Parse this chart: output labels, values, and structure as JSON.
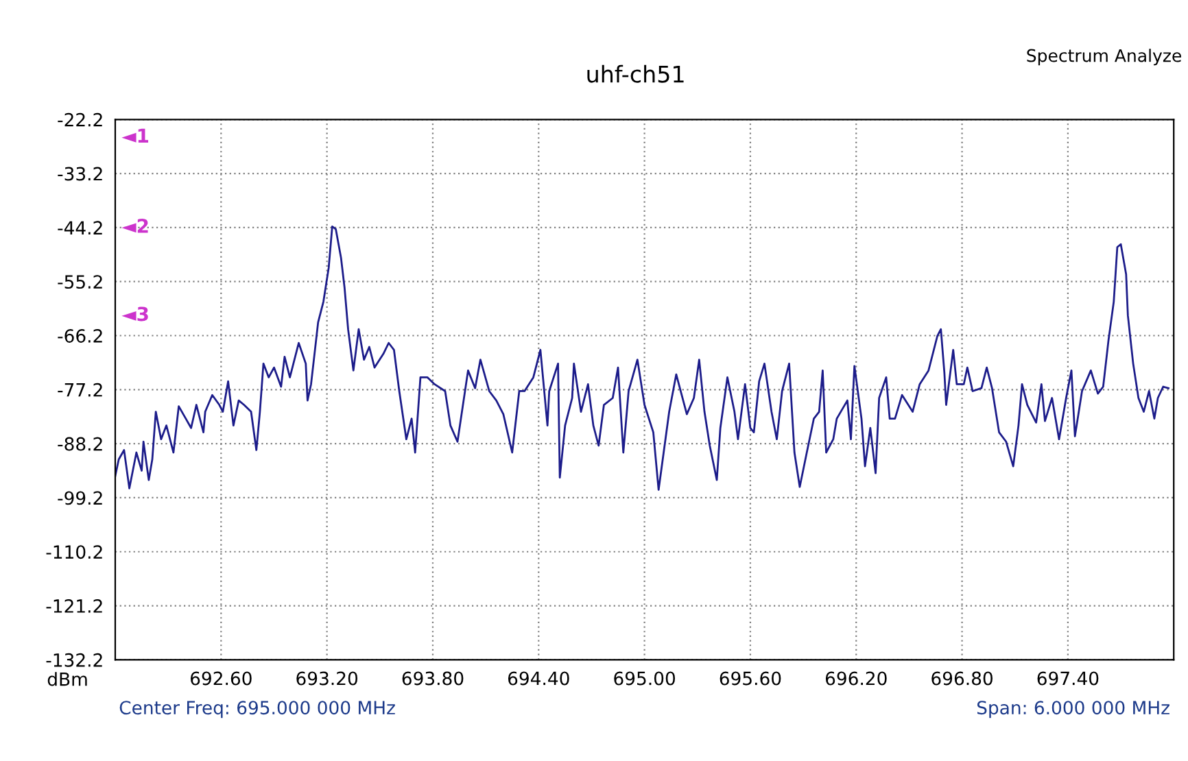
{
  "chart_data": {
    "type": "line",
    "title": "uhf-ch51",
    "ylabel": "dBm",
    "annotations": [
      "Spectrum Analyze",
      "Center Freq: 695.000 000 MHz",
      "Span: 6.000 000 MHz",
      "◄1",
      "◄2",
      "◄3"
    ],
    "series": [
      {
        "color": "#1c1c8a",
        "x": [
          692.0,
          692.02,
          692.05,
          692.08,
          692.12,
          692.15,
          692.16,
          692.19,
          692.21,
          692.23,
          692.26,
          692.29,
          692.33,
          692.36,
          692.4,
          692.43,
          692.46,
          692.5,
          692.51,
          692.55,
          692.59,
          692.61,
          692.64,
          692.67,
          692.7,
          692.73,
          692.77,
          692.8,
          692.82,
          692.84,
          692.87,
          692.9,
          692.94,
          692.96,
          692.99,
          693.04,
          693.08,
          693.09,
          693.11,
          693.15,
          693.18,
          693.21,
          693.23,
          693.25,
          693.28,
          693.3,
          693.32,
          693.35,
          693.38,
          693.41,
          693.44,
          693.47,
          693.52,
          693.55,
          693.58,
          693.61,
          693.65,
          693.68,
          693.7,
          693.73,
          693.77,
          693.81,
          693.87,
          693.9,
          693.94,
          694.0,
          694.04,
          694.07,
          694.12,
          694.16,
          694.2,
          694.25,
          694.29,
          694.32,
          694.37,
          694.41,
          694.45,
          694.46,
          694.51,
          694.52,
          694.55,
          694.59,
          694.6,
          694.64,
          694.68,
          694.71,
          694.74,
          694.77,
          694.82,
          694.85,
          694.88,
          694.91,
          694.96,
          695.0,
          695.05,
          695.08,
          695.14,
          695.18,
          695.24,
          695.28,
          695.31,
          695.34,
          695.37,
          695.41,
          695.43,
          695.47,
          695.51,
          695.53,
          695.57,
          695.6,
          695.62,
          695.65,
          695.68,
          695.72,
          695.75,
          695.78,
          695.82,
          695.85,
          695.88,
          695.92,
          695.96,
          695.99,
          696.01,
          696.03,
          696.07,
          696.09,
          696.15,
          696.17,
          696.19,
          696.23,
          696.25,
          696.28,
          696.31,
          696.33,
          696.37,
          696.39,
          696.42,
          696.46,
          696.52,
          696.56,
          696.61,
          696.66,
          696.68,
          696.7,
          696.71,
          696.75,
          696.77,
          696.81,
          696.83,
          696.86,
          696.91,
          696.94,
          696.97,
          697.01,
          697.05,
          697.09,
          697.12,
          697.14,
          697.17,
          697.22,
          697.25,
          697.27,
          697.31,
          697.35,
          697.39,
          697.42,
          697.44,
          697.48,
          697.53,
          697.57,
          697.6,
          697.63,
          697.66,
          697.68,
          697.7,
          697.73,
          697.74,
          697.77,
          697.8,
          697.83,
          697.86,
          697.89,
          697.91,
          697.94,
          697.97
        ],
        "values": [
          -94.8,
          -91.4,
          -89.5,
          -97.3,
          -90.0,
          -93.7,
          -87.8,
          -95.6,
          -91.4,
          -81.7,
          -87.3,
          -84.5,
          -90.0,
          -80.6,
          -83.1,
          -85.0,
          -80.3,
          -85.9,
          -81.7,
          -78.3,
          -80.3,
          -81.7,
          -75.5,
          -84.5,
          -79.4,
          -80.3,
          -81.7,
          -89.5,
          -81.7,
          -71.9,
          -74.7,
          -72.7,
          -76.6,
          -70.5,
          -74.7,
          -67.7,
          -71.9,
          -79.4,
          -76.1,
          -63.5,
          -59.3,
          -52.4,
          -44.0,
          -44.5,
          -50.4,
          -56.5,
          -64.9,
          -73.3,
          -64.9,
          -71.1,
          -68.5,
          -72.7,
          -69.9,
          -67.7,
          -69.1,
          -77.5,
          -87.3,
          -83.1,
          -90.0,
          -74.7,
          -74.7,
          -76.1,
          -77.5,
          -84.5,
          -87.8,
          -73.3,
          -76.9,
          -71.1,
          -77.5,
          -79.4,
          -82.2,
          -90.0,
          -77.5,
          -77.5,
          -74.7,
          -69.1,
          -84.5,
          -77.5,
          -71.9,
          -95.1,
          -84.5,
          -78.9,
          -71.9,
          -81.7,
          -76.1,
          -84.5,
          -88.6,
          -80.3,
          -78.9,
          -72.7,
          -90.0,
          -77.5,
          -71.1,
          -80.3,
          -85.9,
          -97.6,
          -81.7,
          -74.1,
          -82.2,
          -78.9,
          -71.1,
          -81.7,
          -88.6,
          -95.6,
          -85.0,
          -74.7,
          -81.7,
          -87.3,
          -76.1,
          -85.0,
          -85.9,
          -75.5,
          -71.9,
          -81.7,
          -87.3,
          -77.5,
          -71.9,
          -90.0,
          -97.0,
          -90.0,
          -83.1,
          -81.7,
          -73.3,
          -90.0,
          -87.3,
          -83.1,
          -79.4,
          -87.3,
          -72.4,
          -83.1,
          -92.8,
          -85.0,
          -94.2,
          -78.9,
          -74.7,
          -83.1,
          -83.1,
          -78.3,
          -81.7,
          -76.1,
          -73.3,
          -66.3,
          -64.9,
          -73.8,
          -80.3,
          -69.1,
          -76.1,
          -76.1,
          -72.7,
          -77.5,
          -76.9,
          -72.7,
          -76.9,
          -85.9,
          -87.8,
          -92.8,
          -84.5,
          -76.1,
          -80.3,
          -83.9,
          -76.1,
          -83.6,
          -78.9,
          -87.3,
          -78.9,
          -73.3,
          -86.7,
          -77.5,
          -73.3,
          -78.0,
          -76.6,
          -67.2,
          -59.3,
          -48.2,
          -47.6,
          -53.7,
          -62.1,
          -71.9,
          -78.9,
          -81.7,
          -77.5,
          -83.1,
          -78.9,
          -76.6,
          -76.9
        ]
      }
    ],
    "xlim": [
      692.0,
      698.0
    ],
    "xticks": [
      {
        "value": 692.6,
        "label": "692.60"
      },
      {
        "value": 693.2,
        "label": "693.20"
      },
      {
        "value": 693.8,
        "label": "693.80"
      },
      {
        "value": 694.4,
        "label": "694.40"
      },
      {
        "value": 695.0,
        "label": "695.00"
      },
      {
        "value": 695.6,
        "label": "695.60"
      },
      {
        "value": 696.2,
        "label": "696.20"
      },
      {
        "value": 696.8,
        "label": "696.80"
      },
      {
        "value": 697.4,
        "label": "697.40"
      }
    ],
    "ylim": [
      -132.2,
      -22.2
    ],
    "yticks": [
      -132.2,
      -121.2,
      -110.2,
      -99.2,
      -88.2,
      -77.2,
      -66.2,
      -55.2,
      -44.2,
      -33.2,
      -22.2
    ],
    "grid": true,
    "legend": false
  }
}
